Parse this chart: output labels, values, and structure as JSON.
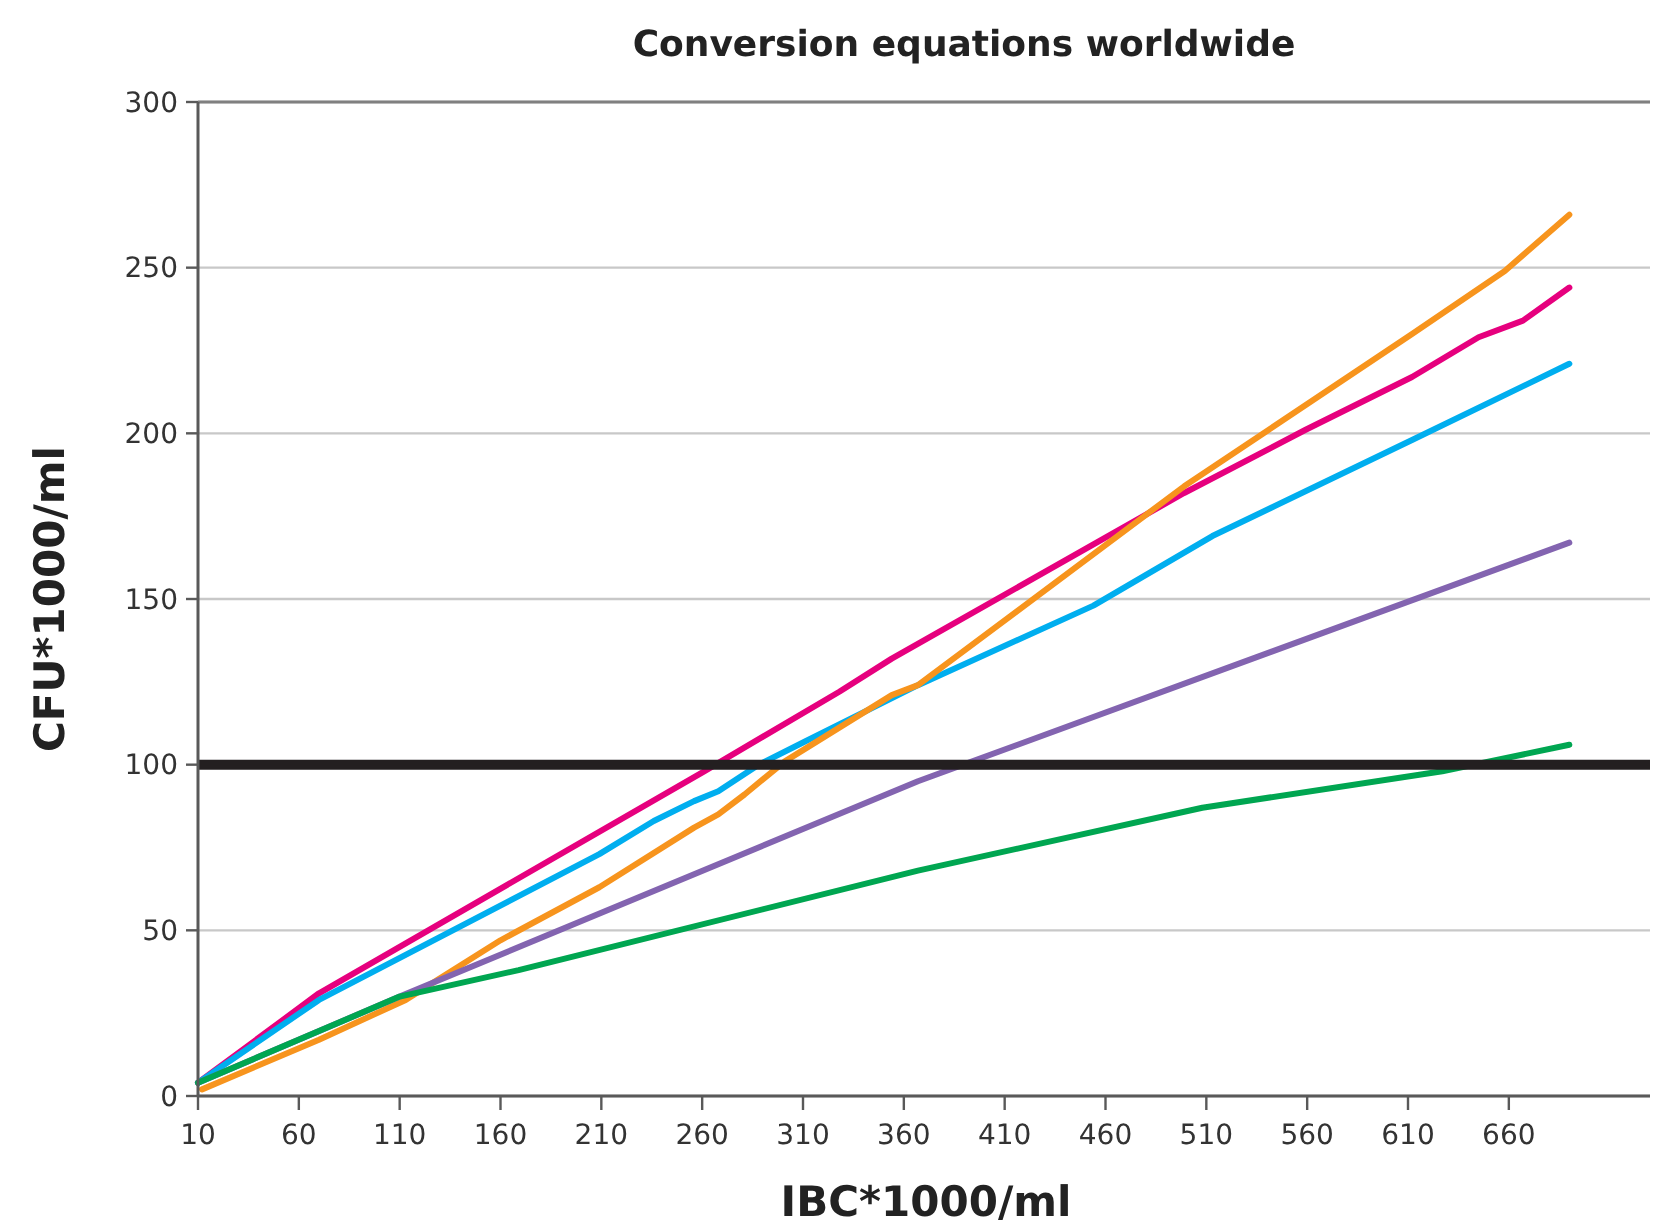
{
  "chart_data": {
    "type": "line",
    "title": "Conversion equations worldwide",
    "xlabel": "IBC*1000/ml",
    "ylabel": "CFU*1000/ml",
    "xlim": [
      10,
      730
    ],
    "xticks": [
      10,
      60,
      110,
      160,
      210,
      260,
      310,
      360,
      410,
      460,
      510,
      560,
      610,
      660
    ],
    "ylim": [
      0,
      300
    ],
    "yticks": [
      0,
      50,
      100,
      150,
      200,
      250,
      300
    ],
    "grid": "y",
    "ref_lines": [
      {
        "axis": "y",
        "value": 100,
        "color": "#231f20"
      }
    ],
    "series": [
      {
        "color": "#e6007e",
        "x": [
          10,
          70,
          261,
          328,
          354,
          499,
          559,
          612,
          645,
          667,
          690
        ],
        "values": [
          4,
          31,
          98,
          122,
          132,
          182,
          201,
          217,
          229,
          234,
          244
        ]
      },
      {
        "color": "#00aeef",
        "x": [
          10,
          70,
          209,
          236,
          256,
          268,
          288,
          311,
          367,
          454,
          513,
          612,
          690
        ],
        "values": [
          4,
          29,
          73,
          83,
          89,
          92,
          100,
          107,
          124,
          148,
          169,
          198,
          221
        ]
      },
      {
        "color": "#f7941d",
        "x": [
          12,
          70,
          113,
          160,
          209,
          256,
          268,
          281,
          301,
          354,
          367,
          499,
          612,
          658,
          690
        ],
        "values": [
          2,
          17,
          29,
          47,
          63,
          81,
          85,
          91,
          101,
          121,
          124,
          184,
          230,
          249,
          266
        ]
      },
      {
        "color": "#8364b0",
        "x": [
          10,
          110,
          367,
          690
        ],
        "values": [
          4,
          30,
          95,
          167
        ]
      },
      {
        "color": "#00a651",
        "x": [
          10,
          110,
          169,
          367,
          508,
          627,
          690
        ],
        "values": [
          4,
          30,
          38,
          68,
          87,
          98,
          106
        ]
      }
    ]
  }
}
